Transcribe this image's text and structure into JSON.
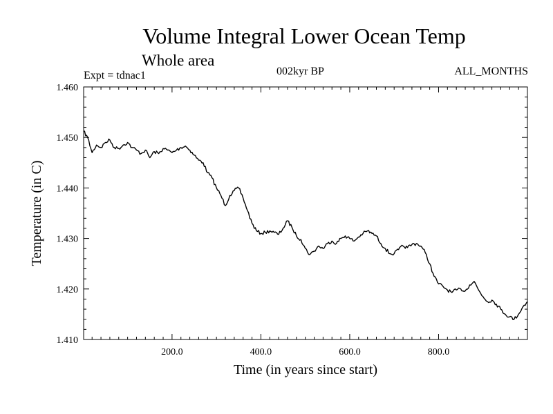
{
  "chart_data": {
    "type": "line",
    "title": "Volume Integral Lower Ocean Temp",
    "subtitle": "Whole area",
    "experiment": "Expt = tdnac1",
    "period": "002kyr BP",
    "months": "ALL_MONTHS",
    "xlabel": "Time (in years since start)",
    "ylabel": "Temperature (in C)",
    "xlim": [
      1,
      1000
    ],
    "ylim": [
      1.41,
      1.46
    ],
    "xticks": [
      200,
      400,
      600,
      800
    ],
    "xtick_labels": [
      "200.0",
      "400.0",
      "600.0",
      "800.0"
    ],
    "yticks": [
      1.41,
      1.42,
      1.43,
      1.44,
      1.45,
      1.46
    ],
    "ytick_labels": [
      "1.410",
      "1.420",
      "1.430",
      "1.440",
      "1.450",
      "1.460"
    ],
    "series": [
      {
        "name": "Volume Integral Lower Ocean Temp",
        "x": [
          1,
          10,
          20,
          30,
          40,
          50,
          60,
          70,
          80,
          90,
          100,
          110,
          120,
          130,
          140,
          150,
          160,
          170,
          180,
          190,
          200,
          210,
          220,
          230,
          240,
          250,
          260,
          270,
          280,
          290,
          300,
          310,
          320,
          330,
          340,
          350,
          360,
          370,
          380,
          390,
          400,
          410,
          420,
          430,
          440,
          450,
          460,
          470,
          480,
          490,
          500,
          510,
          520,
          530,
          540,
          550,
          560,
          570,
          580,
          590,
          600,
          610,
          620,
          630,
          640,
          650,
          660,
          670,
          680,
          690,
          700,
          710,
          720,
          730,
          740,
          750,
          760,
          770,
          780,
          790,
          800,
          810,
          820,
          830,
          840,
          850,
          860,
          870,
          880,
          890,
          900,
          910,
          920,
          930,
          940,
          950,
          960,
          970,
          980,
          990,
          1000
        ],
        "values": [
          1.4512,
          1.45,
          1.447,
          1.4485,
          1.448,
          1.449,
          1.4495,
          1.448,
          1.4478,
          1.4485,
          1.449,
          1.448,
          1.4475,
          1.4468,
          1.4475,
          1.446,
          1.4472,
          1.4468,
          1.4478,
          1.4475,
          1.447,
          1.4475,
          1.448,
          1.4483,
          1.4475,
          1.4465,
          1.4455,
          1.445,
          1.443,
          1.442,
          1.44,
          1.4385,
          1.4365,
          1.4385,
          1.4395,
          1.44,
          1.438,
          1.4355,
          1.433,
          1.4315,
          1.431,
          1.4312,
          1.4315,
          1.4312,
          1.4308,
          1.432,
          1.4335,
          1.4322,
          1.4305,
          1.4298,
          1.428,
          1.4268,
          1.4275,
          1.4285,
          1.428,
          1.429,
          1.4295,
          1.429,
          1.43,
          1.4305,
          1.43,
          1.4295,
          1.4303,
          1.431,
          1.4315,
          1.431,
          1.4305,
          1.429,
          1.428,
          1.427,
          1.427,
          1.4278,
          1.4285,
          1.4282,
          1.4288,
          1.429,
          1.4285,
          1.4272,
          1.425,
          1.4225,
          1.421,
          1.4205,
          1.4198,
          1.4193,
          1.4198,
          1.42,
          1.4196,
          1.4208,
          1.4215,
          1.4198,
          1.4185,
          1.4175,
          1.4178,
          1.417,
          1.416,
          1.415,
          1.4145,
          1.414,
          1.415,
          1.4165,
          1.4175
        ]
      }
    ]
  }
}
